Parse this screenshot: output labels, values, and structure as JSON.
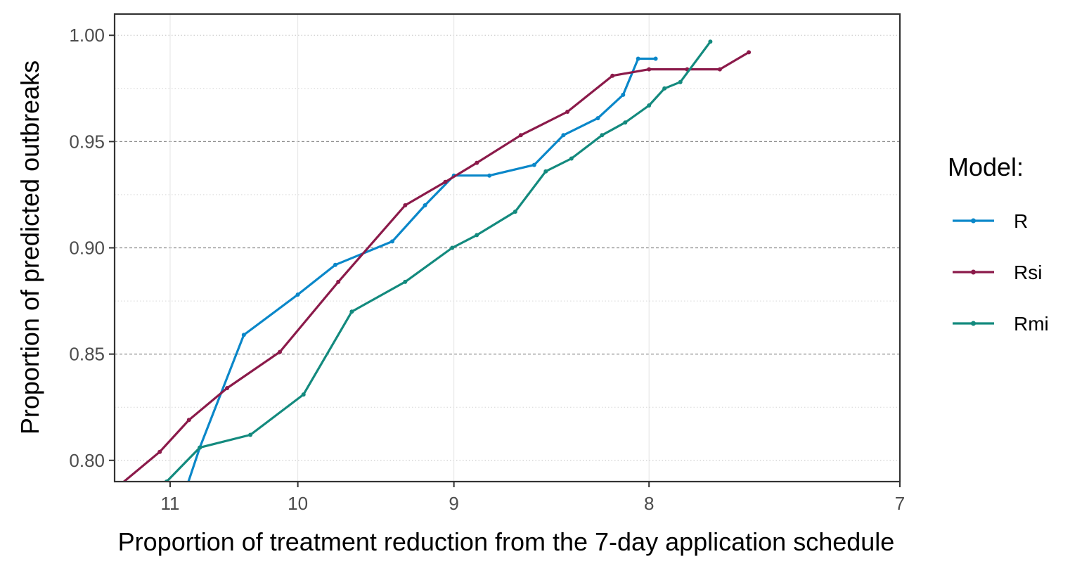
{
  "chart_data": {
    "type": "line",
    "xlabel": "Proportion of treatment reduction from the 7-day application schedule",
    "ylabel": "Proportion of predicted outbreaks",
    "x_scale": "reciprocal",
    "xlim": [
      11.5,
      7
    ],
    "ylim": [
      0.79,
      1.01
    ],
    "x_ticks": [
      "11",
      "10",
      "9",
      "8",
      "7"
    ],
    "y_ticks": [
      "0.80",
      "0.85",
      "0.90",
      "0.95",
      "1.00"
    ],
    "grid": true,
    "legend": {
      "title": "Model:",
      "position": "right"
    },
    "series": [
      {
        "name": "R",
        "color": "#0a87c9",
        "x": [
          10.88,
          10.75,
          10.4,
          10.0,
          9.74,
          9.37,
          9.17,
          9.0,
          8.8,
          8.56,
          8.41,
          8.24,
          8.12,
          8.05,
          7.97
        ],
        "y": [
          0.784,
          0.806,
          0.859,
          0.878,
          0.892,
          0.903,
          0.92,
          0.934,
          0.934,
          0.939,
          0.953,
          0.961,
          0.972,
          0.989,
          0.989
        ]
      },
      {
        "name": "Rsi",
        "color": "#8b1a4a",
        "x": [
          11.46,
          11.09,
          10.84,
          10.53,
          10.13,
          9.72,
          9.29,
          9.05,
          8.87,
          8.63,
          8.39,
          8.17,
          8.0,
          7.83,
          7.69,
          7.57
        ],
        "y": [
          0.788,
          0.804,
          0.819,
          0.834,
          0.851,
          0.884,
          0.92,
          0.931,
          0.94,
          0.953,
          0.964,
          0.981,
          0.984,
          0.984,
          0.984,
          0.992
        ]
      },
      {
        "name": "Rmi",
        "color": "#138a7e",
        "x": [
          11.03,
          10.75,
          10.35,
          9.96,
          9.63,
          9.29,
          9.01,
          8.87,
          8.66,
          8.5,
          8.37,
          8.22,
          8.11,
          8.0,
          7.93,
          7.86,
          7.73
        ],
        "y": [
          0.79,
          0.806,
          0.812,
          0.831,
          0.87,
          0.884,
          0.9,
          0.906,
          0.917,
          0.936,
          0.942,
          0.953,
          0.959,
          0.967,
          0.975,
          0.978,
          0.997
        ]
      }
    ]
  }
}
